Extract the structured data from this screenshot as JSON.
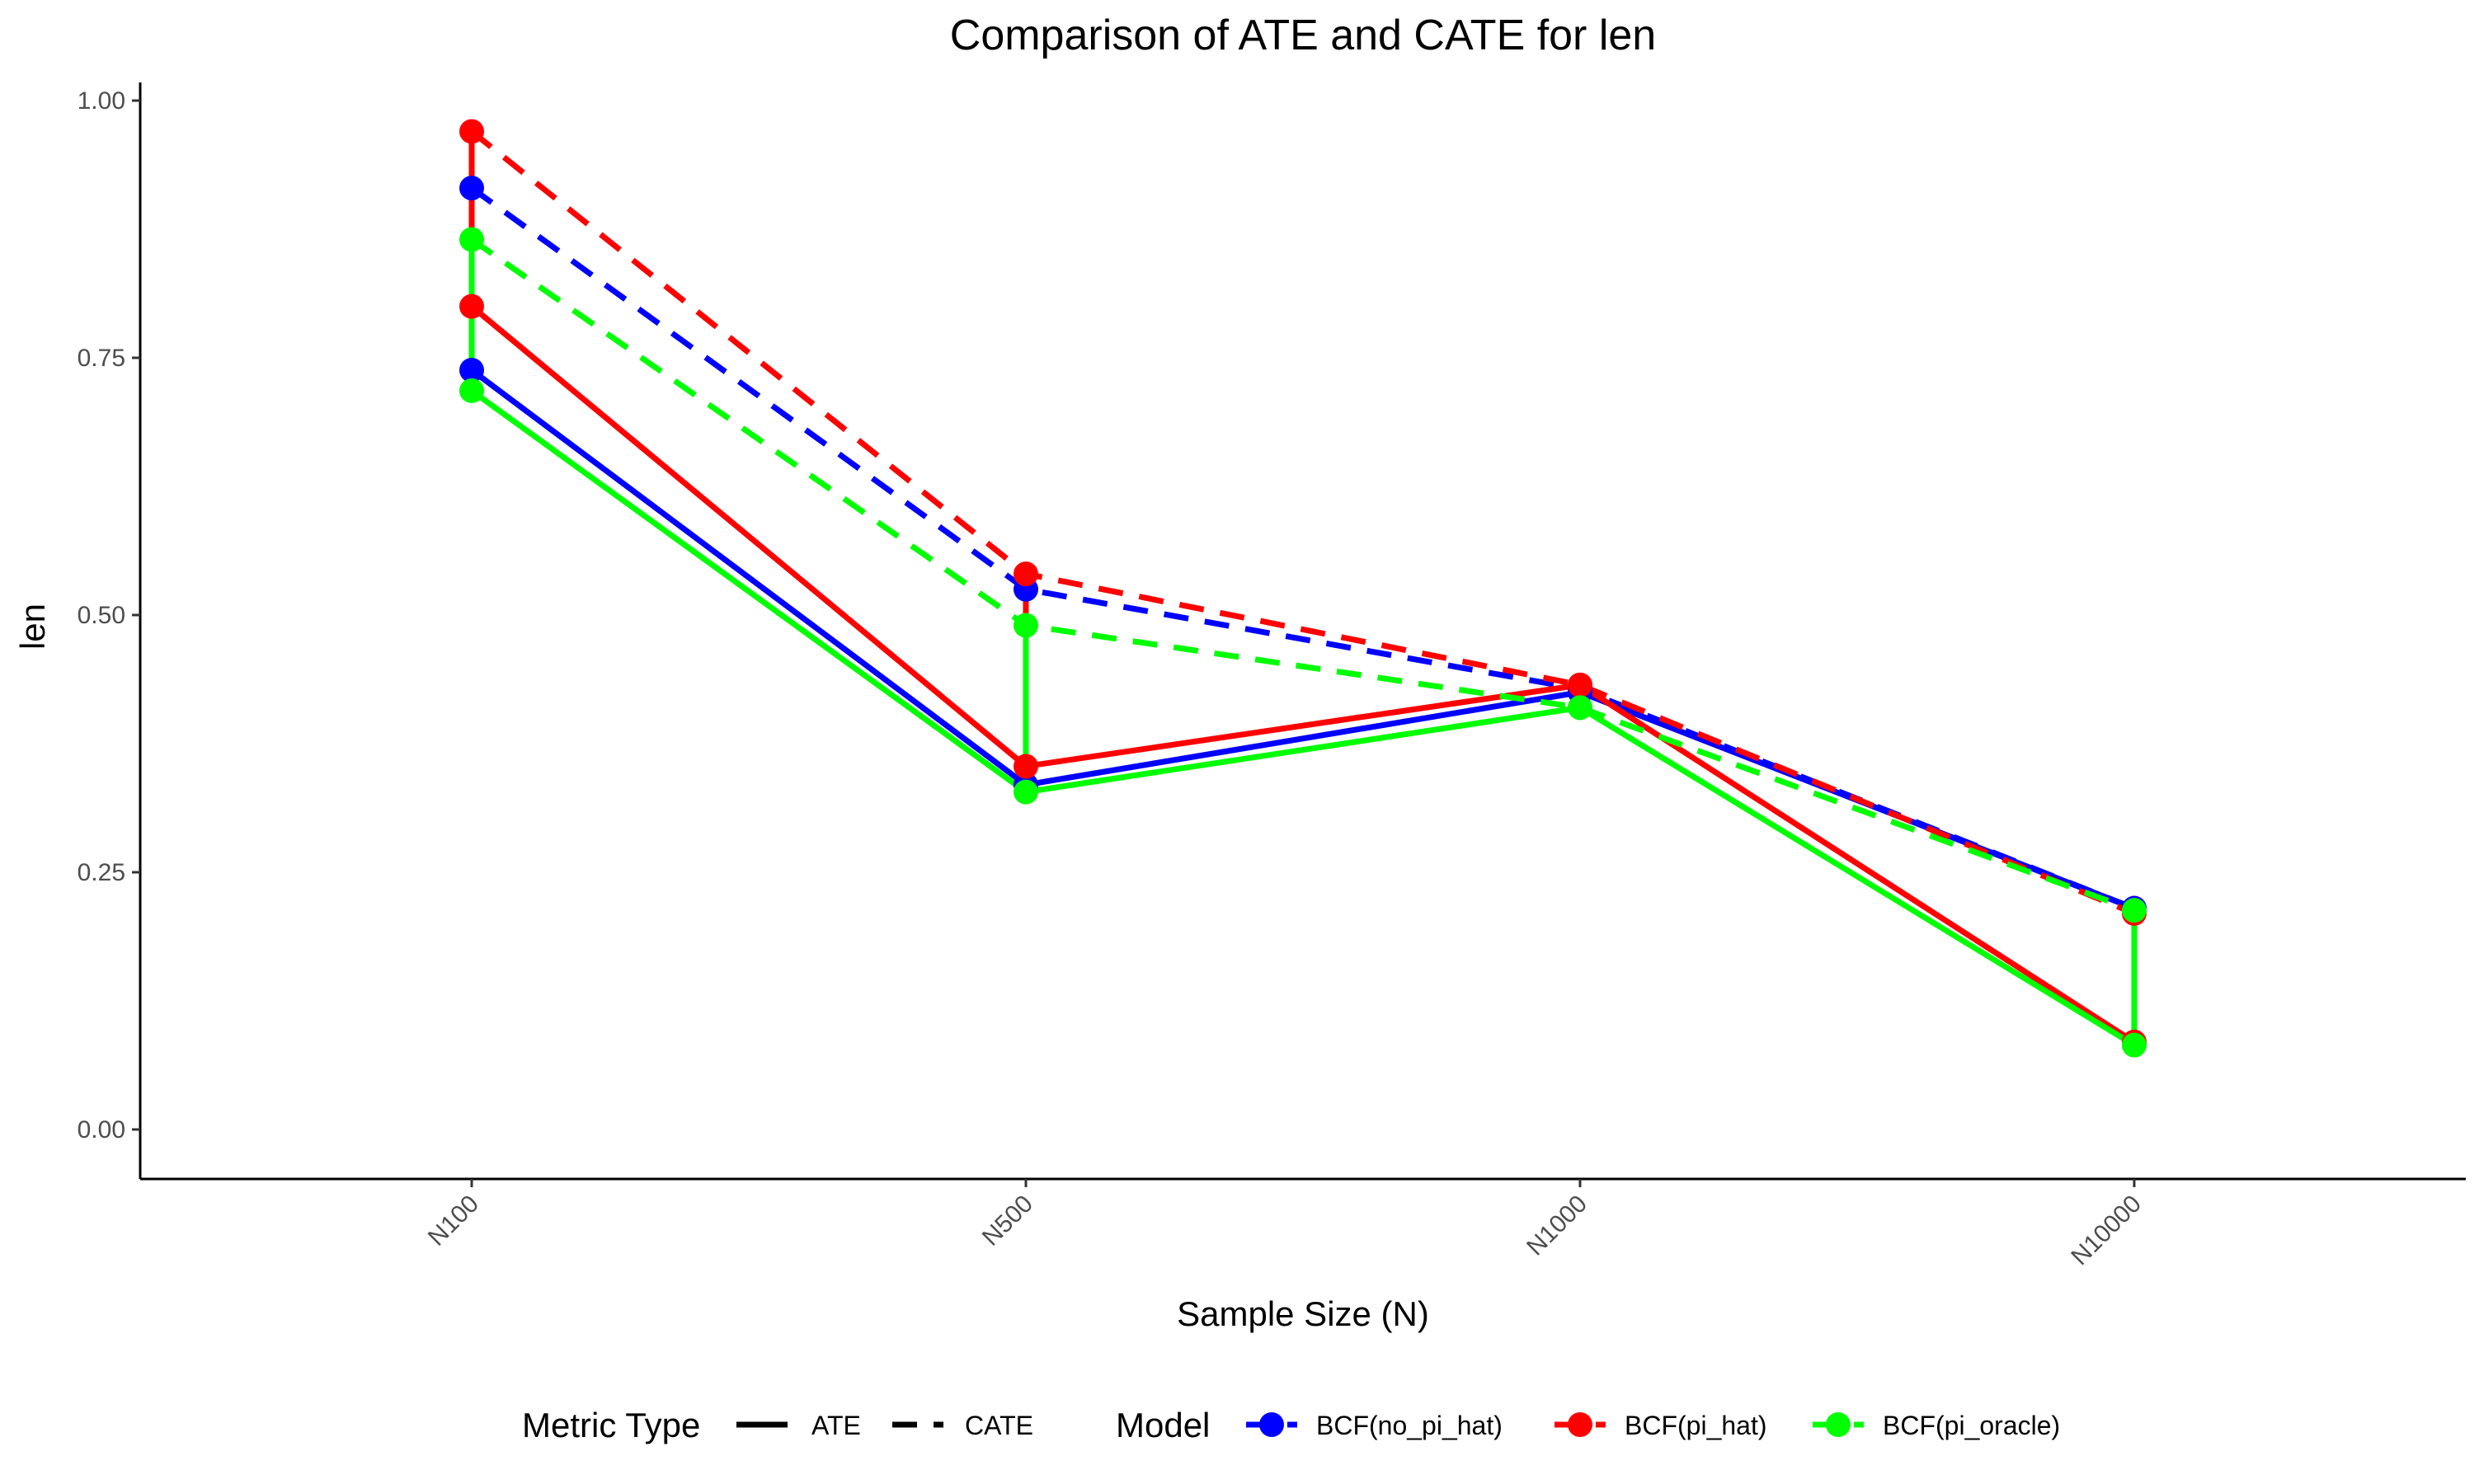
{
  "chart_data": {
    "type": "line",
    "title": "Comparison of ATE and CATE for len",
    "xlabel": "Sample Size (N)",
    "ylabel": "len",
    "categories": [
      "N100",
      "N500",
      "N1000",
      "N10000"
    ],
    "ylim": [
      -0.05,
      1.02
    ],
    "yticks": [
      0.0,
      0.25,
      0.5,
      0.75,
      1.0
    ],
    "ytick_labels": [
      "0.00",
      "0.25",
      "0.50",
      "0.75",
      "1.00"
    ],
    "grid": false,
    "legend_position": "bottom",
    "legend": {
      "metric_title": "Metric Type",
      "metric_items": [
        {
          "label": "ATE",
          "dash": "solid"
        },
        {
          "label": "CATE",
          "dash": "dashed"
        }
      ],
      "model_title": "Model",
      "model_items": [
        {
          "label": "BCF(no_pi_hat)",
          "color": "#0000ff"
        },
        {
          "label": "BCF(pi_hat)",
          "color": "#ff0000"
        },
        {
          "label": "BCF(pi_oracle)",
          "color": "#00ff00"
        }
      ]
    },
    "series": [
      {
        "model": "BCF(no_pi_hat)",
        "metric": "ATE",
        "color": "#0000ff",
        "dash": "solid",
        "values": [
          0.738,
          0.335,
          0.425,
          0.215
        ]
      },
      {
        "model": "BCF(no_pi_hat)",
        "metric": "CATE",
        "color": "#0000ff",
        "dash": "dashed",
        "values": [
          0.915,
          0.525,
          0.428,
          0.215
        ]
      },
      {
        "model": "BCF(pi_hat)",
        "metric": "ATE",
        "color": "#ff0000",
        "dash": "solid",
        "values": [
          0.8,
          0.353,
          0.432,
          0.085
        ]
      },
      {
        "model": "BCF(pi_hat)",
        "metric": "CATE",
        "color": "#ff0000",
        "dash": "dashed",
        "values": [
          0.97,
          0.54,
          0.432,
          0.21
        ]
      },
      {
        "model": "BCF(pi_oracle)",
        "metric": "ATE",
        "color": "#00ff00",
        "dash": "solid",
        "values": [
          0.718,
          0.328,
          0.41,
          0.082
        ]
      },
      {
        "model": "BCF(pi_oracle)",
        "metric": "CATE",
        "color": "#00ff00",
        "dash": "dashed",
        "values": [
          0.865,
          0.49,
          0.41,
          0.213
        ]
      }
    ]
  }
}
